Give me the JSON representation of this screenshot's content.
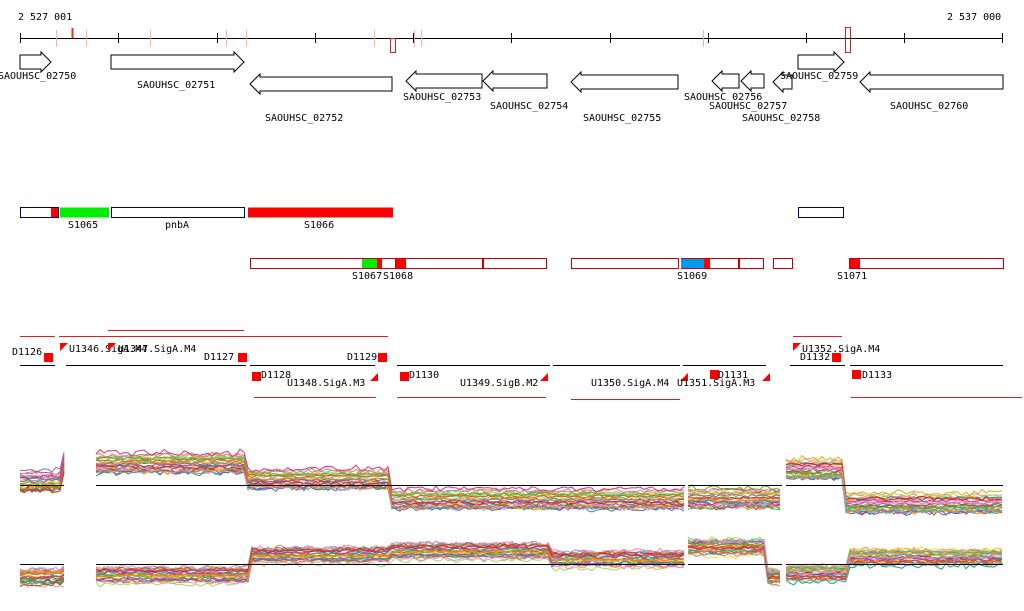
{
  "ruler": {
    "start_label": "2 527 001",
    "end_label": "2 537 000"
  },
  "genes": [
    {
      "id": "SAOUHSC_02750",
      "strand": "+"
    },
    {
      "id": "SAOUHSC_02751",
      "strand": "+"
    },
    {
      "id": "SAOUHSC_02752",
      "strand": "-"
    },
    {
      "id": "SAOUHSC_02753",
      "strand": "-"
    },
    {
      "id": "SAOUHSC_02754",
      "strand": "-"
    },
    {
      "id": "SAOUHSC_02755",
      "strand": "-"
    },
    {
      "id": "SAOUHSC_02756",
      "strand": "-"
    },
    {
      "id": "SAOUHSC_02757",
      "strand": "-"
    },
    {
      "id": "SAOUHSC_02758",
      "strand": "-"
    },
    {
      "id": "SAOUHSC_02759",
      "strand": "+"
    },
    {
      "id": "SAOUHSC_02760",
      "strand": "-"
    }
  ],
  "segments_upper": [
    "S1065",
    "pnbA",
    "S1066"
  ],
  "segments_lower": [
    "S1067",
    "S1068",
    "S1069",
    "S1071"
  ],
  "downshifts": [
    "D1126",
    "D1127",
    "D1128",
    "D1129",
    "D1130",
    "D1131",
    "D1132",
    "D1133"
  ],
  "promoters": [
    "U1346.SigA.M4",
    "U1347.SigA.M4",
    "U1348.SigA.M3",
    "U1349.SigB.M2",
    "U1350.SigA.M4",
    "U1351.SigA.M3",
    "U1352.SigA.M4"
  ],
  "colors": {
    "gene_outline": "#000000",
    "segment_outline_blue": "#000080",
    "segment_outline_red": "#cc0000",
    "segment_green": "#00ee00",
    "segment_red": "#ff0000",
    "segment_blue": "#0099ee",
    "feature_red": "#ff0000",
    "background": "#ffffff"
  }
}
